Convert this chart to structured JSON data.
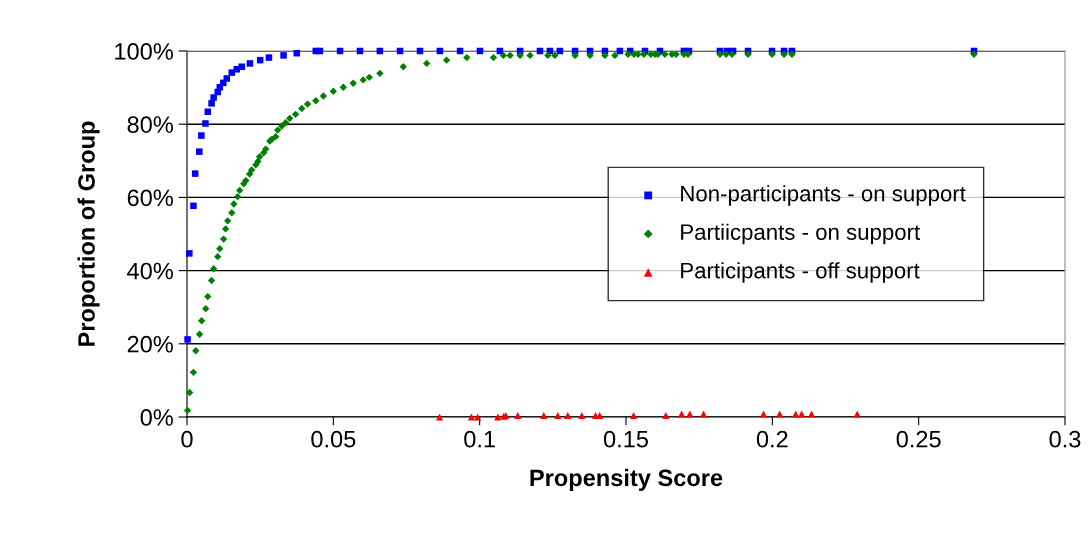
{
  "chart_data": {
    "type": "scatter",
    "xlabel": "Propensity Score",
    "ylabel": "Proportion of Group",
    "xlim": [
      0,
      0.3
    ],
    "xticks": [
      0,
      0.05,
      0.1,
      0.15,
      0.2,
      0.25,
      0.3
    ],
    "ylim": [
      0,
      100
    ],
    "yticks": [
      {
        "value": 0,
        "label": "0%"
      },
      {
        "value": 20,
        "label": "20%"
      },
      {
        "value": 40,
        "label": "40%"
      },
      {
        "value": 60,
        "label": "60%"
      },
      {
        "value": 80,
        "label": "80%"
      },
      {
        "value": 100,
        "label": "100%"
      }
    ],
    "grid": "y",
    "legend": "right",
    "series": [
      {
        "name": "Non-participants - on support",
        "color": "#0000ff",
        "marker": "square",
        "x": [
          0.0002,
          0.0008,
          0.0022,
          0.0028,
          0.0042,
          0.0049,
          0.0063,
          0.0071,
          0.0084,
          0.0091,
          0.0105,
          0.0112,
          0.0124,
          0.0136,
          0.0153,
          0.017,
          0.0187,
          0.0215,
          0.025,
          0.028,
          0.033,
          0.0375,
          0.044,
          0.0454,
          0.0523,
          0.0591,
          0.0659,
          0.0728,
          0.0796,
          0.0864,
          0.0933,
          0.1001,
          0.1069,
          0.1138,
          0.1206,
          0.124,
          0.1274,
          0.1326,
          0.1377,
          0.1428,
          0.1479,
          0.1514,
          0.1565,
          0.1616,
          0.1698,
          0.1715,
          0.1821,
          0.1845,
          0.1866,
          0.1917,
          0.1999,
          0.204,
          0.2067,
          0.2689
        ],
        "values": [
          21.2,
          44.7,
          57.7,
          66.5,
          72.5,
          76.9,
          80.2,
          83.4,
          85.7,
          87.3,
          88.8,
          90.1,
          91.3,
          92.5,
          94.1,
          95.0,
          95.7,
          96.6,
          97.5,
          98.2,
          98.8,
          99.4,
          100,
          100,
          100,
          100,
          100,
          100,
          100,
          100,
          100,
          100,
          100,
          100,
          100,
          100,
          100,
          100,
          100,
          100,
          100,
          100,
          100,
          100,
          100,
          100,
          100,
          100,
          100,
          100,
          100,
          100,
          100,
          100
        ]
      },
      {
        "name": "Partiicpants - on support",
        "color": "#008000",
        "marker": "diamond",
        "x": [
          0.0002,
          0.0009,
          0.0022,
          0.003,
          0.0043,
          0.005,
          0.0064,
          0.0071,
          0.0084,
          0.0091,
          0.0105,
          0.0112,
          0.0125,
          0.0132,
          0.0139,
          0.0153,
          0.016,
          0.0173,
          0.018,
          0.0194,
          0.0201,
          0.0214,
          0.0221,
          0.0235,
          0.0242,
          0.0248,
          0.0262,
          0.0269,
          0.0283,
          0.029,
          0.0303,
          0.031,
          0.0324,
          0.0337,
          0.0351,
          0.0371,
          0.0392,
          0.0412,
          0.044,
          0.0466,
          0.05,
          0.0534,
          0.0568,
          0.0602,
          0.0623,
          0.0659,
          0.0739,
          0.0819,
          0.0887,
          0.0956,
          0.1047,
          0.1081,
          0.1104,
          0.1138,
          0.1172,
          0.1233,
          0.1257,
          0.1326,
          0.1377,
          0.1428,
          0.1462,
          0.1507,
          0.1527,
          0.1541,
          0.1561,
          0.1585,
          0.1599,
          0.1609,
          0.1633,
          0.1657,
          0.1671,
          0.1698,
          0.1712,
          0.1821,
          0.1842,
          0.1862,
          0.1917,
          0.1999,
          0.204,
          0.2067,
          0.2689
        ],
        "values": [
          1.8,
          6.7,
          12.2,
          18.1,
          22.6,
          26.3,
          29.6,
          32.9,
          37.3,
          40.5,
          43.8,
          46.0,
          48.6,
          51.4,
          53.6,
          55.8,
          58.2,
          60.2,
          61.9,
          63.7,
          64.6,
          66.4,
          67.5,
          68.9,
          69.8,
          71.1,
          72.2,
          73.2,
          75.4,
          75.9,
          76.6,
          78.4,
          79.5,
          80.4,
          81.6,
          82.7,
          84.3,
          85.5,
          86.4,
          87.7,
          89.0,
          90.1,
          91.2,
          92.1,
          92.8,
          93.9,
          95.7,
          96.6,
          97.5,
          98.2,
          98.2,
          98.8,
          98.8,
          98.8,
          98.8,
          98.8,
          98.8,
          98.8,
          98.8,
          98.8,
          98.8,
          99.1,
          99.1,
          99.1,
          99.1,
          99.1,
          99.1,
          99.1,
          99.1,
          99.1,
          99.1,
          99.1,
          99.1,
          99.1,
          99.1,
          99.1,
          99.1,
          99.1,
          99.1,
          99.1,
          99.1
        ]
      },
      {
        "name": "Participants - off support",
        "color": "#ff0000",
        "marker": "triangle",
        "x": [
          0.0863,
          0.0972,
          0.0993,
          0.1062,
          0.1082,
          0.1089,
          0.113,
          0.1219,
          0.1267,
          0.1301,
          0.1349,
          0.1396,
          0.141,
          0.1526,
          0.1636,
          0.169,
          0.1718,
          0.1765,
          0.197,
          0.2025,
          0.208,
          0.21,
          0.2134,
          0.229
        ],
        "values": [
          0,
          0,
          0,
          0,
          0.2,
          0.4,
          0.4,
          0.4,
          0.4,
          0.4,
          0.4,
          0.4,
          0.4,
          0.4,
          0.4,
          0.8,
          0.8,
          0.8,
          0.8,
          0.8,
          0.8,
          0.8,
          0.8,
          0.8
        ]
      }
    ]
  }
}
